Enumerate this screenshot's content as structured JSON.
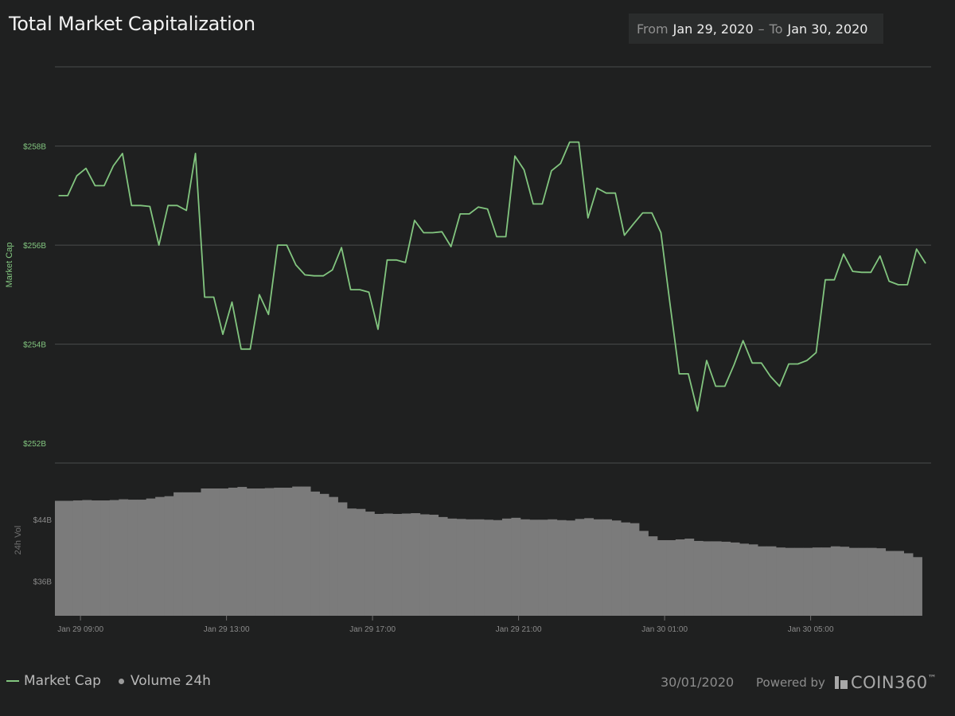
{
  "title": "Total Market Capitalization",
  "date_range": {
    "from_label": "From",
    "from_value": "Jan 29, 2020",
    "separator": "–",
    "to_label": "To",
    "to_value": "Jan 30, 2020"
  },
  "legend": {
    "market_cap": "Market Cap",
    "volume": "Volume 24h"
  },
  "footer": {
    "date": "30/01/2020",
    "powered_by": "Powered by",
    "brand": "COIN360",
    "trademark": "™"
  },
  "colors": {
    "line": "#82c57f",
    "volume": "#7b7b7b",
    "background": "#1f2020",
    "grid": "#4a4b4b"
  },
  "chart_data": [
    {
      "type": "line",
      "name": "Market Cap",
      "ylabel": "Market Cap",
      "ylim": [
        251.6,
        259.6
      ],
      "yticks": [
        252,
        254,
        256,
        258
      ],
      "ytick_labels": [
        "$252B",
        "$254B",
        "$256B",
        "$258B"
      ],
      "xlim": [
        8.3,
        32.3
      ],
      "xticks": [
        9,
        13,
        17,
        21,
        25,
        29
      ],
      "xtick_labels": [
        "Jan 29 09:00",
        "Jan 29 13:00",
        "Jan 29 17:00",
        "Jan 29 21:00",
        "Jan 30 01:00",
        "Jan 30 05:00"
      ],
      "x": [
        8.4,
        8.65,
        8.9,
        9.15,
        9.4,
        9.65,
        9.9,
        10.15,
        10.4,
        10.65,
        10.9,
        11.15,
        11.4,
        11.65,
        11.9,
        12.15,
        12.4,
        12.65,
        12.9,
        13.15,
        13.4,
        13.65,
        13.9,
        14.15,
        14.4,
        14.65,
        14.9,
        15.15,
        15.4,
        15.65,
        15.9,
        16.15,
        16.4,
        16.65,
        16.9,
        17.15,
        17.4,
        17.65,
        17.9,
        18.15,
        18.4,
        18.65,
        18.9,
        19.15,
        19.4,
        19.65,
        19.9,
        20.15,
        20.4,
        20.65,
        20.9,
        21.15,
        21.4,
        21.65,
        21.9,
        22.15,
        22.4,
        22.65,
        22.9,
        23.15,
        23.4,
        23.65,
        23.9,
        24.15,
        24.4,
        24.65,
        24.9,
        25.15,
        25.4,
        25.65,
        25.9,
        26.15,
        26.4,
        26.65,
        26.9,
        27.15,
        27.4,
        27.65,
        27.9,
        28.15,
        28.4,
        28.65,
        28.9,
        29.15,
        29.4,
        29.65,
        29.9,
        30.15,
        30.4,
        30.65,
        30.9,
        31.15,
        31.4,
        31.65,
        31.9,
        32.15
      ],
      "values": [
        257.0,
        257.0,
        257.4,
        257.55,
        257.2,
        257.2,
        257.6,
        257.85,
        256.8,
        256.8,
        256.78,
        256.0,
        256.8,
        256.8,
        256.7,
        257.85,
        254.95,
        254.95,
        254.2,
        254.85,
        253.9,
        253.9,
        255.0,
        254.6,
        256.0,
        256.0,
        255.6,
        255.4,
        255.38,
        255.38,
        255.5,
        255.95,
        255.1,
        255.1,
        255.05,
        254.3,
        255.7,
        255.7,
        255.65,
        256.5,
        256.25,
        256.25,
        256.27,
        255.97,
        256.63,
        256.63,
        256.77,
        256.73,
        256.17,
        256.17,
        257.8,
        257.52,
        256.83,
        256.83,
        257.5,
        257.65,
        258.08,
        258.08,
        256.55,
        257.15,
        257.05,
        257.05,
        256.2,
        256.43,
        256.65,
        256.65,
        256.25,
        254.8,
        253.4,
        253.4,
        252.65,
        253.67,
        253.15,
        253.15,
        253.58,
        254.07,
        253.62,
        253.62,
        253.35,
        253.15,
        253.6,
        253.6,
        253.67,
        253.83,
        255.3,
        255.3,
        255.82,
        255.47,
        255.45,
        255.45,
        255.78,
        255.27,
        255.2,
        255.2,
        255.92,
        255.63
      ]
    },
    {
      "type": "bar",
      "name": "Volume 24h",
      "ylabel": "24h Vol",
      "ylim": [
        31.5,
        51.3
      ],
      "yticks": [
        36,
        44
      ],
      "ytick_labels": [
        "$36B",
        "$44B"
      ],
      "xlim": [
        8.3,
        32.3
      ],
      "x_start": 8.3,
      "bin_width": 0.25,
      "values": [
        46.4,
        46.4,
        46.45,
        46.5,
        46.45,
        46.45,
        46.5,
        46.6,
        46.55,
        46.55,
        46.7,
        46.9,
        47.0,
        47.5,
        47.5,
        47.5,
        48.0,
        48.0,
        48.0,
        48.1,
        48.2,
        48.0,
        48.0,
        48.05,
        48.1,
        48.1,
        48.25,
        48.25,
        47.6,
        47.3,
        46.9,
        46.2,
        45.4,
        45.35,
        45.0,
        44.7,
        44.75,
        44.7,
        44.75,
        44.8,
        44.65,
        44.6,
        44.3,
        44.1,
        44.05,
        44.0,
        44.0,
        43.95,
        43.9,
        44.1,
        44.2,
        44.0,
        43.95,
        43.95,
        44.0,
        43.9,
        43.85,
        44.05,
        44.15,
        44.0,
        44.0,
        43.85,
        43.6,
        43.5,
        42.5,
        41.8,
        41.3,
        41.3,
        41.4,
        41.5,
        41.2,
        41.15,
        41.15,
        41.1,
        41.0,
        40.85,
        40.75,
        40.5,
        40.5,
        40.35,
        40.3,
        40.3,
        40.3,
        40.35,
        40.35,
        40.5,
        40.45,
        40.3,
        40.3,
        40.3,
        40.25,
        39.9,
        39.9,
        39.6,
        39.1
      ]
    }
  ]
}
